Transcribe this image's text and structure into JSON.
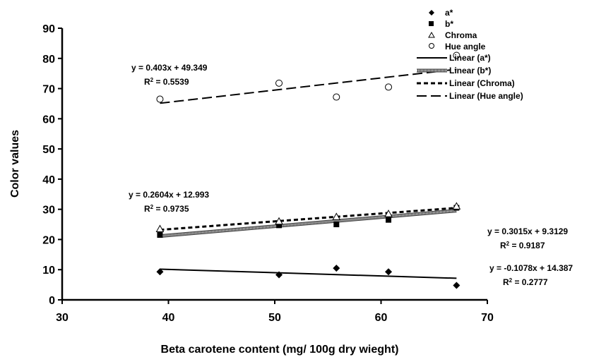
{
  "chart_data": {
    "type": "scatter",
    "xlabel": "Beta carotene content (mg/ 100g dry wieght)",
    "ylabel": "Color values",
    "xlim": [
      30,
      70
    ],
    "ylim": [
      0,
      90
    ],
    "xticks": [
      30,
      40,
      50,
      60,
      70
    ],
    "yticks": [
      0,
      10,
      20,
      30,
      40,
      50,
      60,
      70,
      80,
      90
    ],
    "grid": false,
    "legend_position": "top-right",
    "series": [
      {
        "name": "a*",
        "marker": "diamond",
        "x": [
          39.2,
          50.4,
          55.8,
          60.7,
          67.1
        ],
        "y": [
          9.3,
          8.3,
          10.5,
          9.3,
          4.8
        ]
      },
      {
        "name": "b*",
        "marker": "square",
        "x": [
          39.2,
          50.4,
          55.8,
          60.7,
          67.1
        ],
        "y": [
          21.5,
          24.7,
          25.0,
          26.5,
          30.5
        ]
      },
      {
        "name": "Chroma",
        "marker": "triangle",
        "x": [
          39.2,
          50.4,
          55.8,
          60.7,
          67.1
        ],
        "y": [
          23.5,
          26.0,
          27.5,
          28.5,
          31.0
        ]
      },
      {
        "name": "Hue angle",
        "marker": "circle",
        "x": [
          39.2,
          50.4,
          55.8,
          60.7,
          67.1
        ],
        "y": [
          66.5,
          71.8,
          67.2,
          70.5,
          81.0
        ]
      }
    ],
    "trendlines": [
      {
        "name": "Linear (a*)",
        "style": "solid",
        "slope": -0.1078,
        "intercept": 14.387,
        "equation": "y = -0.1078x + 14.387",
        "r2_label": "R",
        "r2_value": " = 0.2777"
      },
      {
        "name": "Linear (b*)",
        "style": "hatched",
        "slope": 0.3015,
        "intercept": 9.3129,
        "equation": "y = 0.3015x + 9.3129",
        "r2_label": "R",
        "r2_value": " = 0.9187"
      },
      {
        "name": "Linear (Chroma)",
        "style": "dotted",
        "slope": 0.2604,
        "intercept": 12.993,
        "equation": "y = 0.2604x + 12.993",
        "r2_label": "R",
        "r2_value": " = 0.9735"
      },
      {
        "name": "Linear (Hue angle)",
        "style": "dashed",
        "slope": 0.403,
        "intercept": 49.349,
        "equation": "y = 0.403x + 49.349",
        "r2_label": "R",
        "r2_value": " = 0.5539"
      }
    ],
    "trend_x_range": [
      39.2,
      67.1
    ]
  }
}
